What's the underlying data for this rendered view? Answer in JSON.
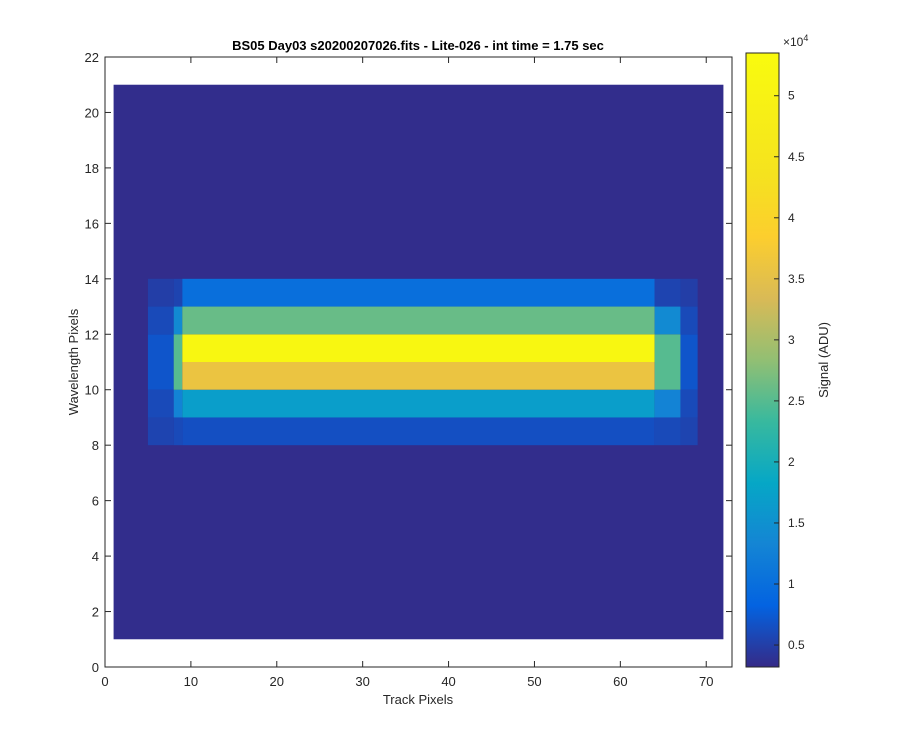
{
  "chart_data": {
    "type": "heatmap",
    "title": "BS05 Day03  s20200207026.fits - Lite-026 - int time = 1.75 sec",
    "xlabel": "Track Pixels",
    "ylabel": "Wavelength Pixels",
    "xlim": [
      0,
      73
    ],
    "ylim": [
      0,
      22
    ],
    "x_ticks": [
      "0",
      "10",
      "20",
      "30",
      "40",
      "50",
      "60",
      "70"
    ],
    "y_ticks": [
      "0",
      "2",
      "4",
      "6",
      "8",
      "10",
      "12",
      "14",
      "16",
      "18",
      "20",
      "22"
    ],
    "x_tick_values": [
      0,
      10,
      20,
      30,
      40,
      50,
      60,
      70
    ],
    "y_tick_values": [
      0,
      2,
      4,
      6,
      8,
      10,
      12,
      14,
      16,
      18,
      20,
      22
    ],
    "image_x_range": [
      1,
      72
    ],
    "image_y_range": [
      1,
      21
    ],
    "band_rows": [
      {
        "row": 9,
        "values": [
          0.55,
          0.6,
          0.65
        ]
      },
      {
        "row": 10,
        "values": [
          0.6,
          1.3,
          1.7
        ]
      },
      {
        "row": 11,
        "values": [
          0.7,
          2.5,
          3.6
        ]
      },
      {
        "row": 12,
        "values": [
          0.7,
          2.5,
          5.2
        ]
      },
      {
        "row": 13,
        "values": [
          0.6,
          1.4,
          2.6
        ]
      },
      {
        "row": 14,
        "values": [
          0.5,
          0.55,
          1.0
        ]
      }
    ],
    "background_value": 0.35,
    "colorbar": {
      "label": "Signal (ADU)",
      "exponent_label": "×10",
      "exponent": "4",
      "range": [
        0.32,
        5.35
      ],
      "ticks": [
        "0.5",
        "1",
        "1.5",
        "2",
        "2.5",
        "3",
        "3.5",
        "4",
        "4.5",
        "5"
      ],
      "tick_values": [
        0.5,
        1,
        1.5,
        2,
        2.5,
        3,
        3.5,
        4,
        4.5,
        5
      ],
      "colormap": "parula"
    },
    "grid": false
  }
}
